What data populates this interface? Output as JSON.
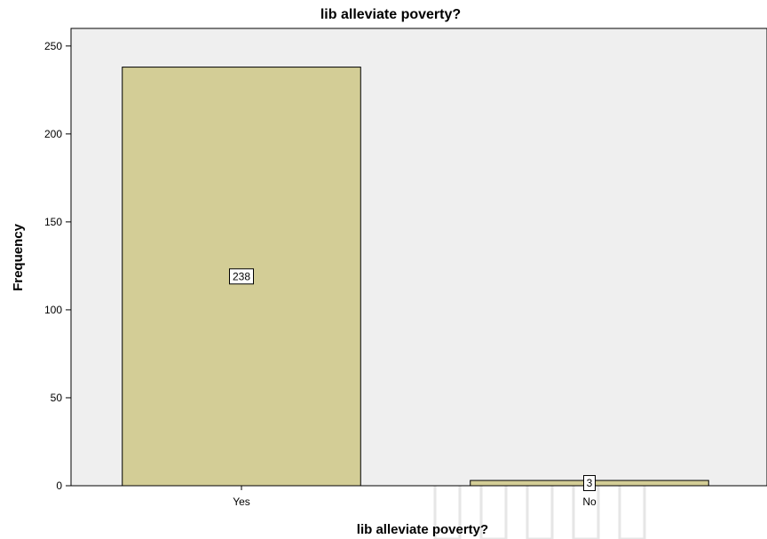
{
  "chart_data": {
    "type": "bar",
    "title": "lib alleviate poverty?",
    "xlabel": "lib alleviate poverty?",
    "ylabel": "Frequency",
    "categories": [
      "Yes",
      "No"
    ],
    "values": [
      238,
      3
    ],
    "ylim": [
      0,
      260
    ],
    "yticks": [
      0,
      50,
      100,
      150,
      200,
      250
    ],
    "grid": false,
    "colors": {
      "bar_fill": "#d3cd96",
      "bar_stroke": "#000000",
      "plot_background": "#efefef",
      "label_box": "#ffffff"
    }
  }
}
